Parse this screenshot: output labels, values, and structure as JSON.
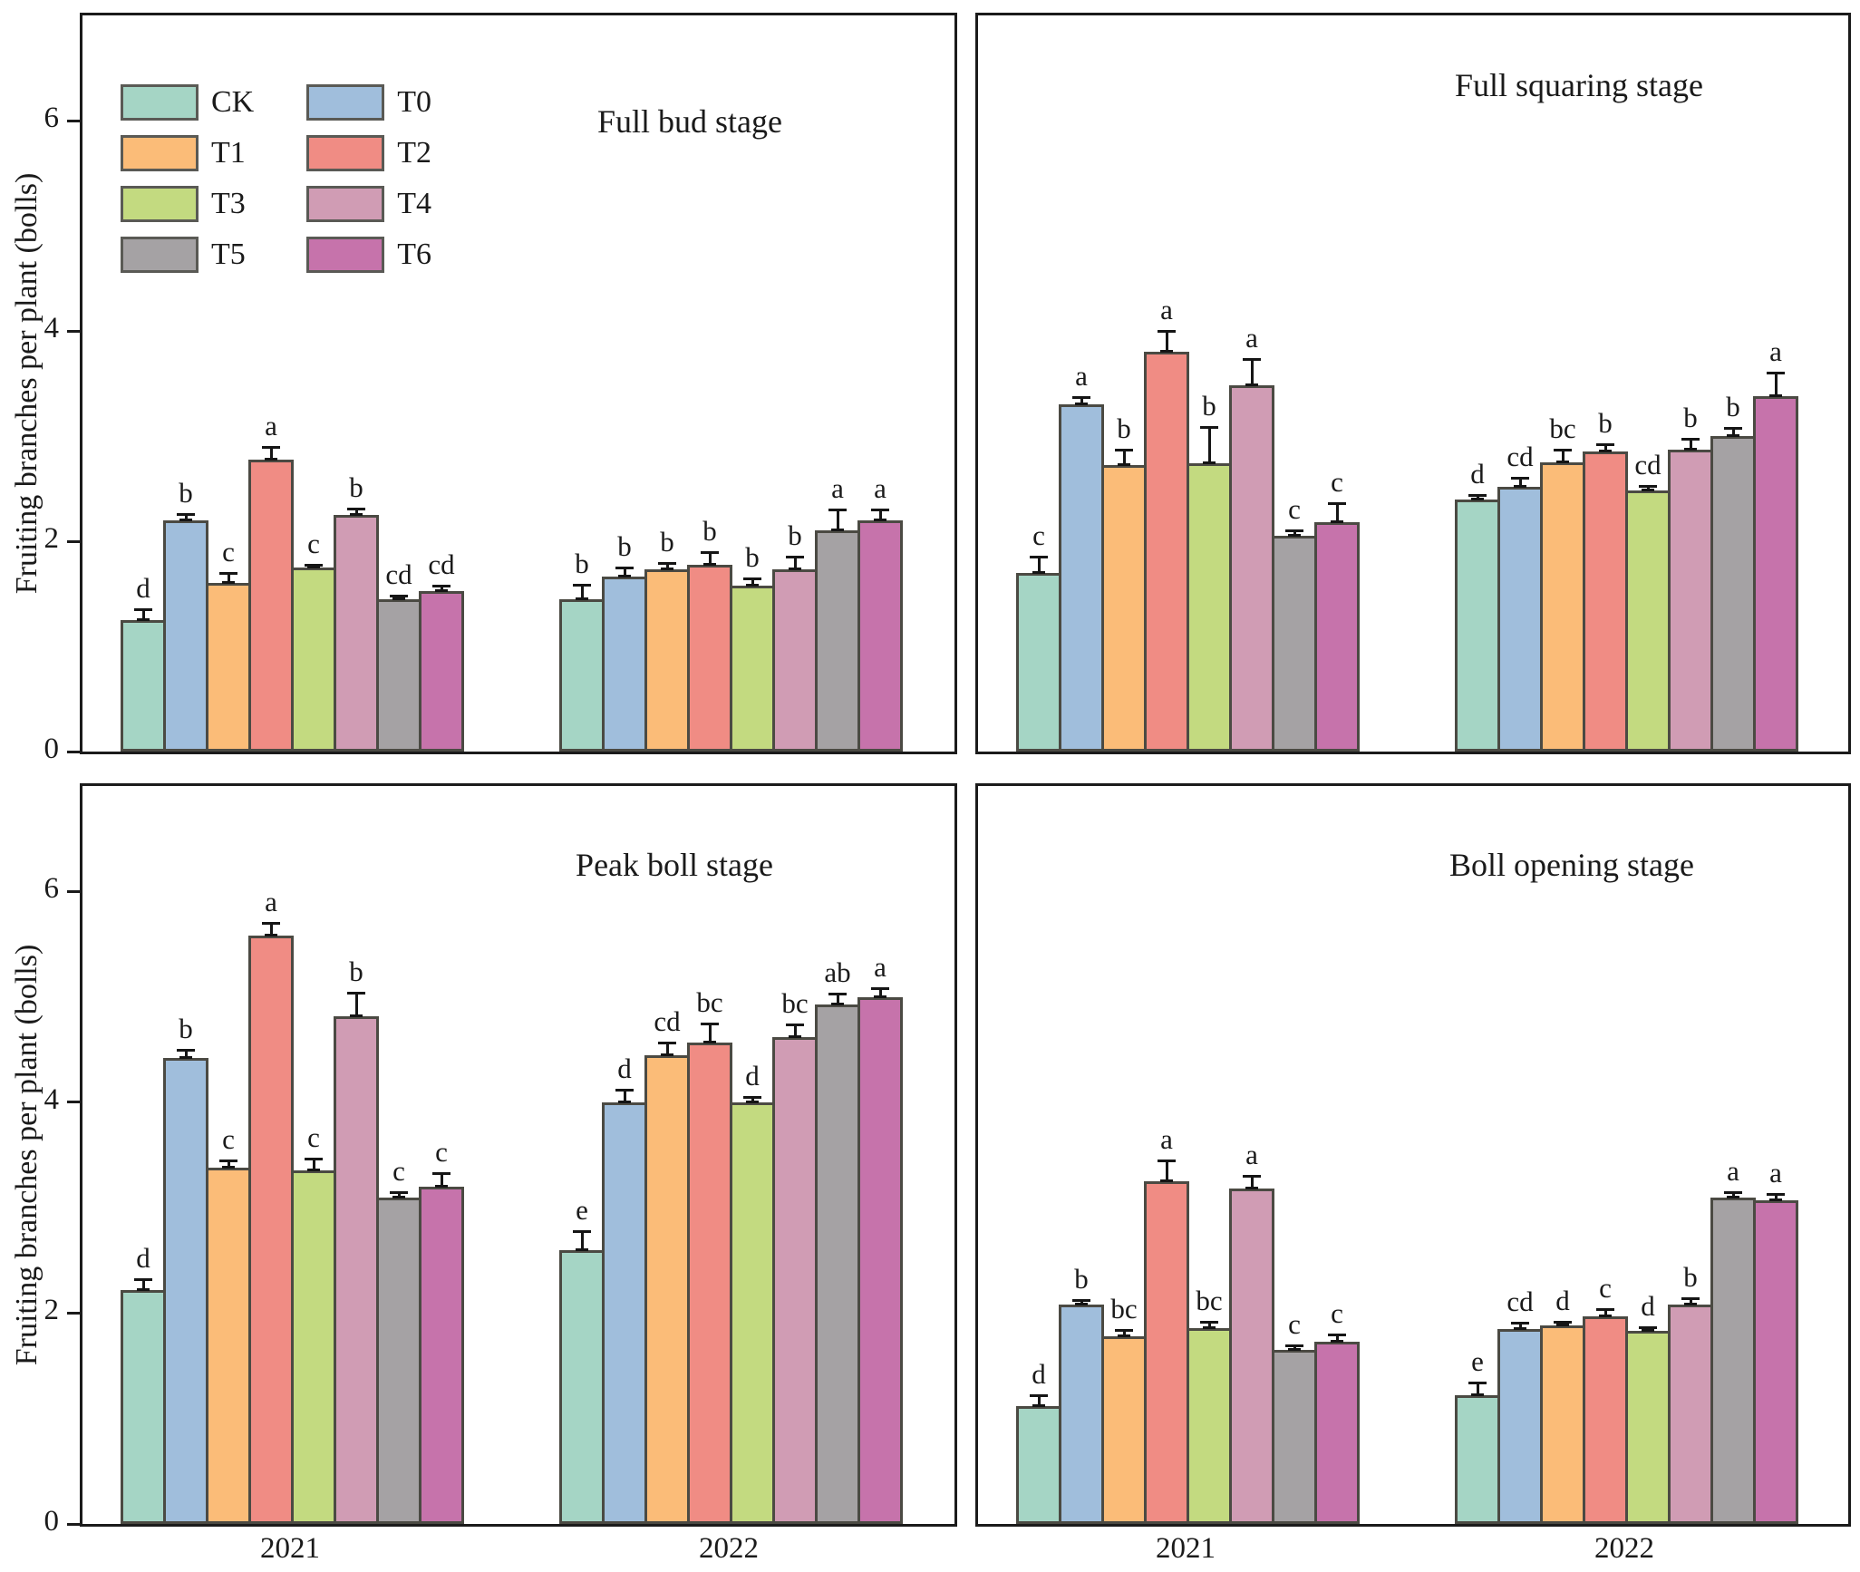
{
  "figure": {
    "ylabel": "Fruiting branches per plant (bolls)",
    "x_tick_labels": [
      "2021",
      "2022"
    ],
    "yticks": [
      0,
      2,
      4,
      6
    ],
    "ylim": [
      0,
      7
    ],
    "bar_edge_color": "#4b4a43",
    "error_bar_color": "#151515",
    "axis_color": "#1b1b1b",
    "legend": [
      {
        "label": "CK",
        "color": "#a5d5c5"
      },
      {
        "label": "T0",
        "color": "#a0bedc"
      },
      {
        "label": "T1",
        "color": "#fbbc78"
      },
      {
        "label": "T2",
        "color": "#f08c84"
      },
      {
        "label": "T3",
        "color": "#c3da80"
      },
      {
        "label": "T4",
        "color": "#d09cb4"
      },
      {
        "label": "T5",
        "color": "#a5a2a4"
      },
      {
        "label": "T6",
        "color": "#c673ab"
      }
    ]
  },
  "chart_data": [
    {
      "type": "bar",
      "title": "Full bud stage",
      "xlabel": "",
      "ylabel": "Fruiting branches per plant (bolls)",
      "ylim": [
        0,
        7
      ],
      "grid": false,
      "legend_position": "upper-left",
      "categories": [
        "2021",
        "2022"
      ],
      "series": [
        {
          "name": "CK",
          "values": [
            1.25,
            1.45
          ],
          "errors": [
            0.1,
            0.14
          ],
          "letters": [
            "d",
            "b"
          ]
        },
        {
          "name": "T0",
          "values": [
            2.2,
            1.66
          ],
          "errors": [
            0.06,
            0.09
          ],
          "letters": [
            "b",
            "b"
          ]
        },
        {
          "name": "T1",
          "values": [
            1.6,
            1.73
          ],
          "errors": [
            0.1,
            0.06
          ],
          "letters": [
            "c",
            "b"
          ]
        },
        {
          "name": "T2",
          "values": [
            2.78,
            1.78
          ],
          "errors": [
            0.12,
            0.12
          ],
          "letters": [
            "a",
            "b"
          ]
        },
        {
          "name": "T3",
          "values": [
            1.75,
            1.58
          ],
          "errors": [
            0.03,
            0.07
          ],
          "letters": [
            "c",
            "b"
          ]
        },
        {
          "name": "T4",
          "values": [
            2.25,
            1.73
          ],
          "errors": [
            0.06,
            0.12
          ],
          "letters": [
            "b",
            "b"
          ]
        },
        {
          "name": "T5",
          "values": [
            1.45,
            2.1
          ],
          "errors": [
            0.03,
            0.2
          ],
          "letters": [
            "cd",
            "a"
          ]
        },
        {
          "name": "T6",
          "values": [
            1.53,
            2.2
          ],
          "errors": [
            0.05,
            0.1
          ],
          "letters": [
            "cd",
            "a"
          ]
        }
      ]
    },
    {
      "type": "bar",
      "title": "Full squaring stage",
      "xlabel": "",
      "ylabel": "",
      "ylim": [
        0,
        7
      ],
      "grid": false,
      "legend_position": "none",
      "categories": [
        "2021",
        "2022"
      ],
      "series": [
        {
          "name": "CK",
          "values": [
            1.7,
            2.4
          ],
          "errors": [
            0.15,
            0.04
          ],
          "letters": [
            "c",
            "d"
          ]
        },
        {
          "name": "T0",
          "values": [
            3.3,
            2.52
          ],
          "errors": [
            0.07,
            0.08
          ],
          "letters": [
            "a",
            "cd"
          ]
        },
        {
          "name": "T1",
          "values": [
            2.72,
            2.75
          ],
          "errors": [
            0.15,
            0.12
          ],
          "letters": [
            "b",
            "bc"
          ]
        },
        {
          "name": "T2",
          "values": [
            3.8,
            2.85
          ],
          "errors": [
            0.2,
            0.07
          ],
          "letters": [
            "a",
            "b"
          ]
        },
        {
          "name": "T3",
          "values": [
            2.74,
            2.48
          ],
          "errors": [
            0.35,
            0.05
          ],
          "letters": [
            "b",
            "cd"
          ]
        },
        {
          "name": "T4",
          "values": [
            3.48,
            2.87
          ],
          "errors": [
            0.25,
            0.1
          ],
          "letters": [
            "a",
            "b"
          ]
        },
        {
          "name": "T5",
          "values": [
            2.05,
            3.0
          ],
          "errors": [
            0.05,
            0.08
          ],
          "letters": [
            "c",
            "b"
          ]
        },
        {
          "name": "T6",
          "values": [
            2.18,
            3.38
          ],
          "errors": [
            0.18,
            0.22
          ],
          "letters": [
            "c",
            "a"
          ]
        }
      ]
    },
    {
      "type": "bar",
      "title": "Peak boll stage",
      "xlabel": "",
      "ylabel": "Fruiting branches per plant (bolls)",
      "ylim": [
        0,
        7
      ],
      "grid": false,
      "legend_position": "none",
      "categories": [
        "2021",
        "2022"
      ],
      "series": [
        {
          "name": "CK",
          "values": [
            2.22,
            2.6
          ],
          "errors": [
            0.1,
            0.18
          ],
          "letters": [
            "d",
            "e"
          ]
        },
        {
          "name": "T0",
          "values": [
            4.42,
            4.0
          ],
          "errors": [
            0.08,
            0.12
          ],
          "letters": [
            "b",
            "d"
          ]
        },
        {
          "name": "T1",
          "values": [
            3.38,
            4.45
          ],
          "errors": [
            0.07,
            0.12
          ],
          "letters": [
            "c",
            "cd"
          ]
        },
        {
          "name": "T2",
          "values": [
            5.58,
            4.57
          ],
          "errors": [
            0.12,
            0.18
          ],
          "letters": [
            "a",
            "bc"
          ]
        },
        {
          "name": "T3",
          "values": [
            3.35,
            4.0
          ],
          "errors": [
            0.12,
            0.05
          ],
          "letters": [
            "c",
            "d"
          ]
        },
        {
          "name": "T4",
          "values": [
            4.82,
            4.62
          ],
          "errors": [
            0.22,
            0.12
          ],
          "letters": [
            "b",
            "bc"
          ]
        },
        {
          "name": "T5",
          "values": [
            3.1,
            4.93
          ],
          "errors": [
            0.05,
            0.1
          ],
          "letters": [
            "c",
            "ab"
          ]
        },
        {
          "name": "T6",
          "values": [
            3.2,
            5.0
          ],
          "errors": [
            0.13,
            0.08
          ],
          "letters": [
            "c",
            "a"
          ]
        }
      ]
    },
    {
      "type": "bar",
      "title": "Boll opening stage",
      "xlabel": "",
      "ylabel": "",
      "ylim": [
        0,
        7
      ],
      "grid": false,
      "legend_position": "none",
      "categories": [
        "2021",
        "2022"
      ],
      "series": [
        {
          "name": "CK",
          "values": [
            1.12,
            1.22
          ],
          "errors": [
            0.1,
            0.12
          ],
          "letters": [
            "d",
            "e"
          ]
        },
        {
          "name": "T0",
          "values": [
            2.08,
            1.85
          ],
          "errors": [
            0.04,
            0.06
          ],
          "letters": [
            "b",
            "cd"
          ]
        },
        {
          "name": "T1",
          "values": [
            1.78,
            1.88
          ],
          "errors": [
            0.06,
            0.04
          ],
          "letters": [
            "bc",
            "d"
          ]
        },
        {
          "name": "T2",
          "values": [
            3.25,
            1.97
          ],
          "errors": [
            0.2,
            0.07
          ],
          "letters": [
            "a",
            "c"
          ]
        },
        {
          "name": "T3",
          "values": [
            1.86,
            1.83
          ],
          "errors": [
            0.06,
            0.04
          ],
          "letters": [
            "bc",
            "d"
          ]
        },
        {
          "name": "T4",
          "values": [
            3.18,
            2.08
          ],
          "errors": [
            0.12,
            0.06
          ],
          "letters": [
            "a",
            "b"
          ]
        },
        {
          "name": "T5",
          "values": [
            1.65,
            3.1
          ],
          "errors": [
            0.04,
            0.05
          ],
          "letters": [
            "c",
            "a"
          ]
        },
        {
          "name": "T6",
          "values": [
            1.73,
            3.07
          ],
          "errors": [
            0.07,
            0.06
          ],
          "letters": [
            "c",
            "a"
          ]
        }
      ]
    }
  ]
}
